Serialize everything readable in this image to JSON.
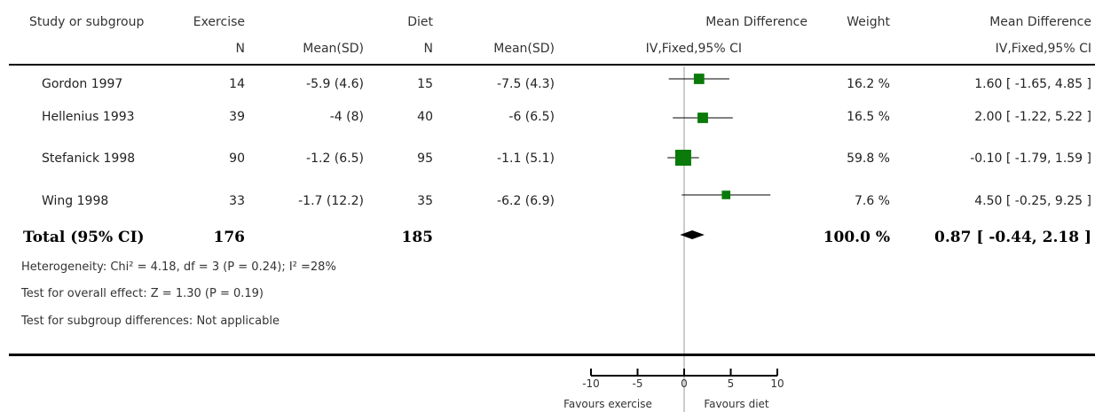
{
  "header": {
    "study_label": "Study or subgroup",
    "group1_label": "Exercise",
    "group2_label": "Diet",
    "n_label": "N",
    "mean_sd_label": "Mean(SD)",
    "effect_label": "Mean Difference",
    "effect_method": "IV,Fixed,95% CI",
    "weight_label": "Weight",
    "ci_label": "Mean Difference",
    "ci_method": "IV,Fixed,95% CI"
  },
  "studies": [
    {
      "name": "Gordon 1997",
      "n1": "14",
      "mean_sd1": "-5.9 (4.6)",
      "n2": "15",
      "mean_sd2": "-7.5 (4.3)",
      "weight": "16.2 %",
      "ci_text": "1.60 [ -1.65, 4.85 ]"
    },
    {
      "name": "Hellenius 1993",
      "n1": "39",
      "mean_sd1": "-4 (8)",
      "n2": "40",
      "mean_sd2": "-6 (6.5)",
      "weight": "16.5 %",
      "ci_text": "2.00 [ -1.22, 5.22 ]"
    },
    {
      "name": "Stefanick 1998",
      "n1": "90",
      "mean_sd1": "-1.2 (6.5)",
      "n2": "95",
      "mean_sd2": "-1.1 (5.1)",
      "weight": "59.8 %",
      "ci_text": "-0.10 [ -1.79, 1.59 ]"
    },
    {
      "name": "Wing 1998",
      "n1": "33",
      "mean_sd1": "-1.7 (12.2)",
      "n2": "35",
      "mean_sd2": "-6.2 (6.9)",
      "weight": "7.6 %",
      "ci_text": "4.50 [ -0.25, 9.25 ]"
    }
  ],
  "total": {
    "label": "Total (95% CI)",
    "n1": "176",
    "n2": "185",
    "weight": "100.0 %",
    "ci_text": "0.87 [ -0.44, 2.18 ]"
  },
  "footnotes": {
    "heterogeneity": "Heterogeneity: Chi² = 4.18, df = 3 (P = 0.24); I² =28%",
    "overall_effect": "Test for overall effect: Z = 1.30 (P = 0.19)",
    "subgroup": "Test for subgroup differences: Not applicable"
  },
  "axis": {
    "favours_left": "Favours exercise",
    "favours_right": "Favours diet"
  },
  "colors": {
    "marker": "#0a7a0a",
    "line": "#000000",
    "null_line": "#999999"
  },
  "chart_data": {
    "type": "scatter",
    "subtype": "forest plot",
    "x_range": [
      -10,
      10
    ],
    "ticks": [
      -10,
      -5,
      0,
      5,
      10
    ],
    "null_value": 0,
    "studies": [
      {
        "label": "Gordon 1997",
        "estimate": 1.6,
        "ci_low": -1.65,
        "ci_high": 4.85,
        "weight_pct": 16.2
      },
      {
        "label": "Hellenius 1993",
        "estimate": 2.0,
        "ci_low": -1.22,
        "ci_high": 5.22,
        "weight_pct": 16.5
      },
      {
        "label": "Stefanick 1998",
        "estimate": -0.1,
        "ci_low": -1.79,
        "ci_high": 1.59,
        "weight_pct": 59.8
      },
      {
        "label": "Wing 1998",
        "estimate": 4.5,
        "ci_low": -0.25,
        "ci_high": 9.25,
        "weight_pct": 7.6
      }
    ],
    "pooled": {
      "label": "Total (95% CI)",
      "estimate": 0.87,
      "ci_low": -0.44,
      "ci_high": 2.18
    }
  }
}
